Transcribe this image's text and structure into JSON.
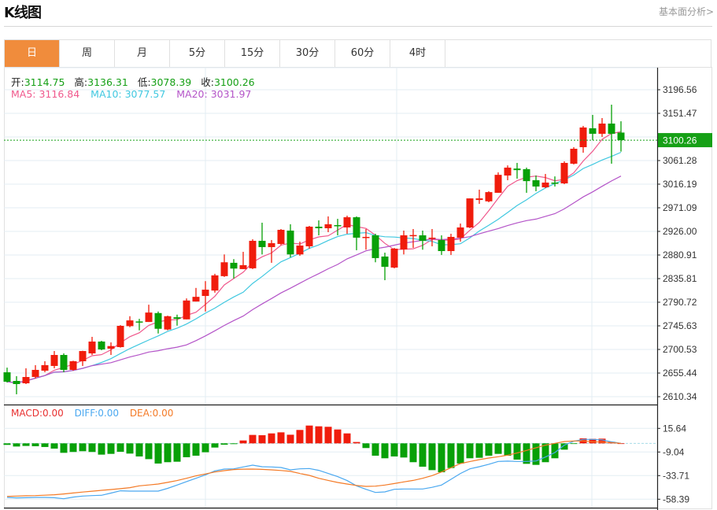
{
  "header": {
    "title": "K线图",
    "link": "基本面分析>"
  },
  "tabs": [
    {
      "label": "日",
      "active": true
    },
    {
      "label": "周"
    },
    {
      "label": "月"
    },
    {
      "label": "5分"
    },
    {
      "label": "15分"
    },
    {
      "label": "30分"
    },
    {
      "label": "60分"
    },
    {
      "label": "4时"
    }
  ],
  "info": {
    "open_label": "开:",
    "open": "3114.75",
    "high_label": "高:",
    "high": "3136.31",
    "low_label": "低:",
    "low": "3078.39",
    "close_label": "收:",
    "close": "3100.26"
  },
  "ma": {
    "ma5": "MA5: 3116.84",
    "ma10": "MA10: 3077.57",
    "ma20": "MA20: 3031.97"
  },
  "macd_legend": {
    "macd": "MACD:0.00",
    "diff": "DIFF:0.00",
    "dea": "DEA:0.00"
  },
  "colors": {
    "up": "#f01c0c",
    "down": "#08a008",
    "ma5": "#f0588c",
    "ma10": "#40c8e0",
    "ma20": "#b454c8",
    "diff": "#4aa8f0",
    "dea": "#f47a26",
    "tab_active": "#f08c3c",
    "current_price": "#16a016"
  },
  "chart_data": [
    {
      "type": "candlestick",
      "title": "K线图",
      "current_price": "3100.26",
      "ylim": [
        2610.34,
        3196.56
      ],
      "y_ticks": [
        "3196.56",
        "3151.47",
        "3061.28",
        "3016.19",
        "2971.09",
        "2926.00",
        "2880.91",
        "2835.81",
        "2790.72",
        "2745.63",
        "2700.53",
        "2655.44",
        "2610.34"
      ],
      "y_tick_values": [
        3196.56,
        3151.47,
        3061.28,
        3016.19,
        2971.09,
        2926.0,
        2880.91,
        2835.81,
        2790.72,
        2745.63,
        2700.53,
        2655.44,
        2610.34
      ],
      "grid": true,
      "ohlc": [
        [
          2656.9,
          2665.8,
          2637.3,
          2638.9
        ],
        [
          2640.4,
          2649.5,
          2614.9,
          2634.4
        ],
        [
          2635.9,
          2664.5,
          2634.4,
          2647.9
        ],
        [
          2648.0,
          2670.5,
          2645.0,
          2661.5
        ],
        [
          2660.0,
          2678.0,
          2657.0,
          2670.5
        ],
        [
          2669.0,
          2697.5,
          2664.5,
          2690.0
        ],
        [
          2690.0,
          2693.0,
          2657.0,
          2661.5
        ],
        [
          2661.5,
          2679.0,
          2660.0,
          2678.0
        ],
        [
          2678.0,
          2698.0,
          2669.0,
          2697.5
        ],
        [
          2693.0,
          2724.6,
          2690.0,
          2715.6
        ],
        [
          2715.6,
          2717.0,
          2699.0,
          2700.5
        ],
        [
          2702.0,
          2714.0,
          2690.0,
          2707.0
        ],
        [
          2705.0,
          2747.0,
          2704.0,
          2745.6
        ],
        [
          2745.0,
          2764.0,
          2743.0,
          2756.0
        ],
        [
          2754.0,
          2759.0,
          2737.0,
          2753.0
        ],
        [
          2753.0,
          2786.0,
          2753.0,
          2771.0
        ],
        [
          2770.0,
          2773.0,
          2731.0,
          2740.0
        ],
        [
          2738.6,
          2765.0,
          2737.0,
          2764.0
        ],
        [
          2762.0,
          2767.0,
          2746.0,
          2759.0
        ],
        [
          2758.0,
          2798.0,
          2758.0,
          2794.0
        ],
        [
          2792.0,
          2818.0,
          2792.0,
          2801.0
        ],
        [
          2802.7,
          2831.0,
          2773.0,
          2814.7
        ],
        [
          2813.0,
          2845.0,
          2809.0,
          2842.0
        ],
        [
          2840.5,
          2882.0,
          2839.0,
          2867.0
        ],
        [
          2866.0,
          2873.0,
          2836.0,
          2855.0
        ],
        [
          2854.0,
          2887.0,
          2854.0,
          2861.5
        ],
        [
          2855.5,
          2911.0,
          2854.0,
          2908.0
        ],
        [
          2908.0,
          2942.6,
          2882.0,
          2896.0
        ],
        [
          2896.0,
          2909.5,
          2866.0,
          2903.5
        ],
        [
          2902.0,
          2930.5,
          2900.0,
          2929.0
        ],
        [
          2927.5,
          2939.6,
          2876.4,
          2882.0
        ],
        [
          2882.0,
          2906.5,
          2879.4,
          2899.0
        ],
        [
          2897.5,
          2936.5,
          2893.0,
          2935.0
        ],
        [
          2935.0,
          2947.0,
          2918.5,
          2932.0
        ],
        [
          2932.0,
          2954.6,
          2924.5,
          2939.6
        ],
        [
          2938.0,
          2950.0,
          2918.5,
          2936.5
        ],
        [
          2933.5,
          2956.0,
          2921.5,
          2953.0
        ],
        [
          2953.0,
          2954.6,
          2890.0,
          2914.0
        ],
        [
          2914.0,
          2930.5,
          2891.0,
          2915.5
        ],
        [
          2918.5,
          2921.5,
          2867.0,
          2875.0
        ],
        [
          2878.0,
          2885.4,
          2832.8,
          2858.4
        ],
        [
          2856.9,
          2894.5,
          2855.4,
          2893.0
        ],
        [
          2891.5,
          2927.5,
          2882.0,
          2918.5
        ],
        [
          2917.0,
          2930.5,
          2894.5,
          2919.0
        ],
        [
          2918.5,
          2927.5,
          2891.0,
          2908.0
        ],
        [
          2912.6,
          2930.5,
          2897.5,
          2914.0
        ],
        [
          2909.5,
          2918.5,
          2881.0,
          2888.4
        ],
        [
          2888.4,
          2921.5,
          2881.0,
          2915.5
        ],
        [
          2914.0,
          2941.0,
          2906.5,
          2933.5
        ],
        [
          2933.5,
          2989.0,
          2932.0,
          2989.0
        ],
        [
          2986.0,
          3005.7,
          2978.6,
          2989.0
        ],
        [
          2983.4,
          3002.7,
          2981.6,
          3001.0
        ],
        [
          2999.7,
          3038.7,
          2999.7,
          3034.0
        ],
        [
          3032.7,
          3052.0,
          3023.7,
          3047.8
        ],
        [
          3046.0,
          3056.8,
          3026.7,
          3043.0
        ],
        [
          3044.8,
          3047.8,
          2999.7,
          3022.0
        ],
        [
          3023.7,
          3032.7,
          3002.7,
          3011.7
        ],
        [
          3010.2,
          3035.7,
          3008.7,
          3019.2
        ],
        [
          3019.2,
          3031.0,
          3011.7,
          3017.7
        ],
        [
          3017.7,
          3059.8,
          3016.2,
          3056.8
        ],
        [
          3055.3,
          3086.8,
          3053.8,
          3083.8
        ],
        [
          3086.8,
          3127.4,
          3076.3,
          3124.4
        ],
        [
          3122.9,
          3148.5,
          3100.3,
          3112.4
        ],
        [
          3112.4,
          3142.4,
          3106.4,
          3131.9
        ],
        [
          3131.9,
          3168.0,
          3055.3,
          3112.4
        ],
        [
          3114.75,
          3136.31,
          3078.39,
          3100.26
        ]
      ],
      "ma_periods": [
        5,
        10,
        20
      ]
    },
    {
      "type": "bar+line",
      "title": "MACD",
      "ylim": [
        -58.39,
        15.64
      ],
      "y_ticks": [
        "15.64",
        "-9.04",
        "-33.71",
        "-58.39"
      ],
      "y_tick_values": [
        15.64,
        -9.04,
        -33.71,
        -58.39
      ],
      "macd": [
        -1.6,
        -3.3,
        -2.7,
        -3.0,
        -3.8,
        -5.5,
        -9.9,
        -9.0,
        -8.2,
        -9.0,
        -11.8,
        -11.0,
        -8.8,
        -10.7,
        -13.7,
        -16.5,
        -21.1,
        -19.7,
        -19.2,
        -14.5,
        -12.9,
        -9.3,
        -4.4,
        -1.4,
        -0.8,
        3.0,
        8.8,
        8.5,
        10.4,
        11.5,
        9.0,
        14.0,
        18.6,
        17.8,
        17.3,
        14.5,
        10.4,
        1.4,
        -4.9,
        -12.9,
        -15.6,
        -13.7,
        -14.8,
        -19.7,
        -24.4,
        -28.0,
        -30.2,
        -25.8,
        -21.1,
        -15.6,
        -15.1,
        -12.9,
        -11.0,
        -12.9,
        -17.0,
        -21.4,
        -22.5,
        -19.7,
        -15.6,
        -6.6,
        -0.3,
        5.2,
        4.7,
        4.9,
        1.6,
        0.0
      ],
      "diff": [
        -56.5,
        -57.0,
        -56.8,
        -56.5,
        -56.5,
        -56.8,
        -57.9,
        -56.2,
        -55.1,
        -54.6,
        -54.3,
        -52.0,
        -49.6,
        -49.9,
        -49.9,
        -49.9,
        -49.9,
        -47.0,
        -43.6,
        -40.0,
        -36.5,
        -33.0,
        -28.8,
        -26.9,
        -26.6,
        -24.7,
        -22.8,
        -24.4,
        -24.7,
        -25.2,
        -27.7,
        -26.6,
        -26.3,
        -28.2,
        -31.5,
        -34.8,
        -38.9,
        -44.4,
        -48.0,
        -51.3,
        -50.7,
        -48.0,
        -47.7,
        -47.7,
        -47.7,
        -46.0,
        -43.6,
        -37.6,
        -31.5,
        -26.6,
        -24.4,
        -21.9,
        -18.9,
        -18.6,
        -18.9,
        -18.9,
        -18.4,
        -14.3,
        -9.6,
        -1.9,
        2.2,
        4.1,
        4.1,
        3.6,
        1.6,
        0.0
      ],
      "dea": [
        -55.4,
        -55.1,
        -54.8,
        -54.6,
        -54.2,
        -53.7,
        -52.9,
        -51.9,
        -50.9,
        -50.0,
        -49.1,
        -48.3,
        -47.4,
        -46.3,
        -44.4,
        -43.5,
        -42.5,
        -40.8,
        -38.9,
        -36.5,
        -34.0,
        -32.0,
        -29.9,
        -28.5,
        -27.4,
        -27.0,
        -26.9,
        -27.2,
        -27.7,
        -28.4,
        -29.3,
        -31.5,
        -33.5,
        -36.5,
        -38.7,
        -40.9,
        -42.5,
        -44.0,
        -45.0,
        -44.7,
        -43.6,
        -42.0,
        -40.3,
        -38.7,
        -36.5,
        -33.7,
        -29.9,
        -25.5,
        -21.1,
        -19.0,
        -17.0,
        -15.4,
        -14.0,
        -12.3,
        -10.1,
        -7.4,
        -4.6,
        -1.9,
        0.0,
        1.9,
        2.5,
        2.5,
        1.6,
        1.4,
        0.8,
        0.0
      ]
    }
  ]
}
